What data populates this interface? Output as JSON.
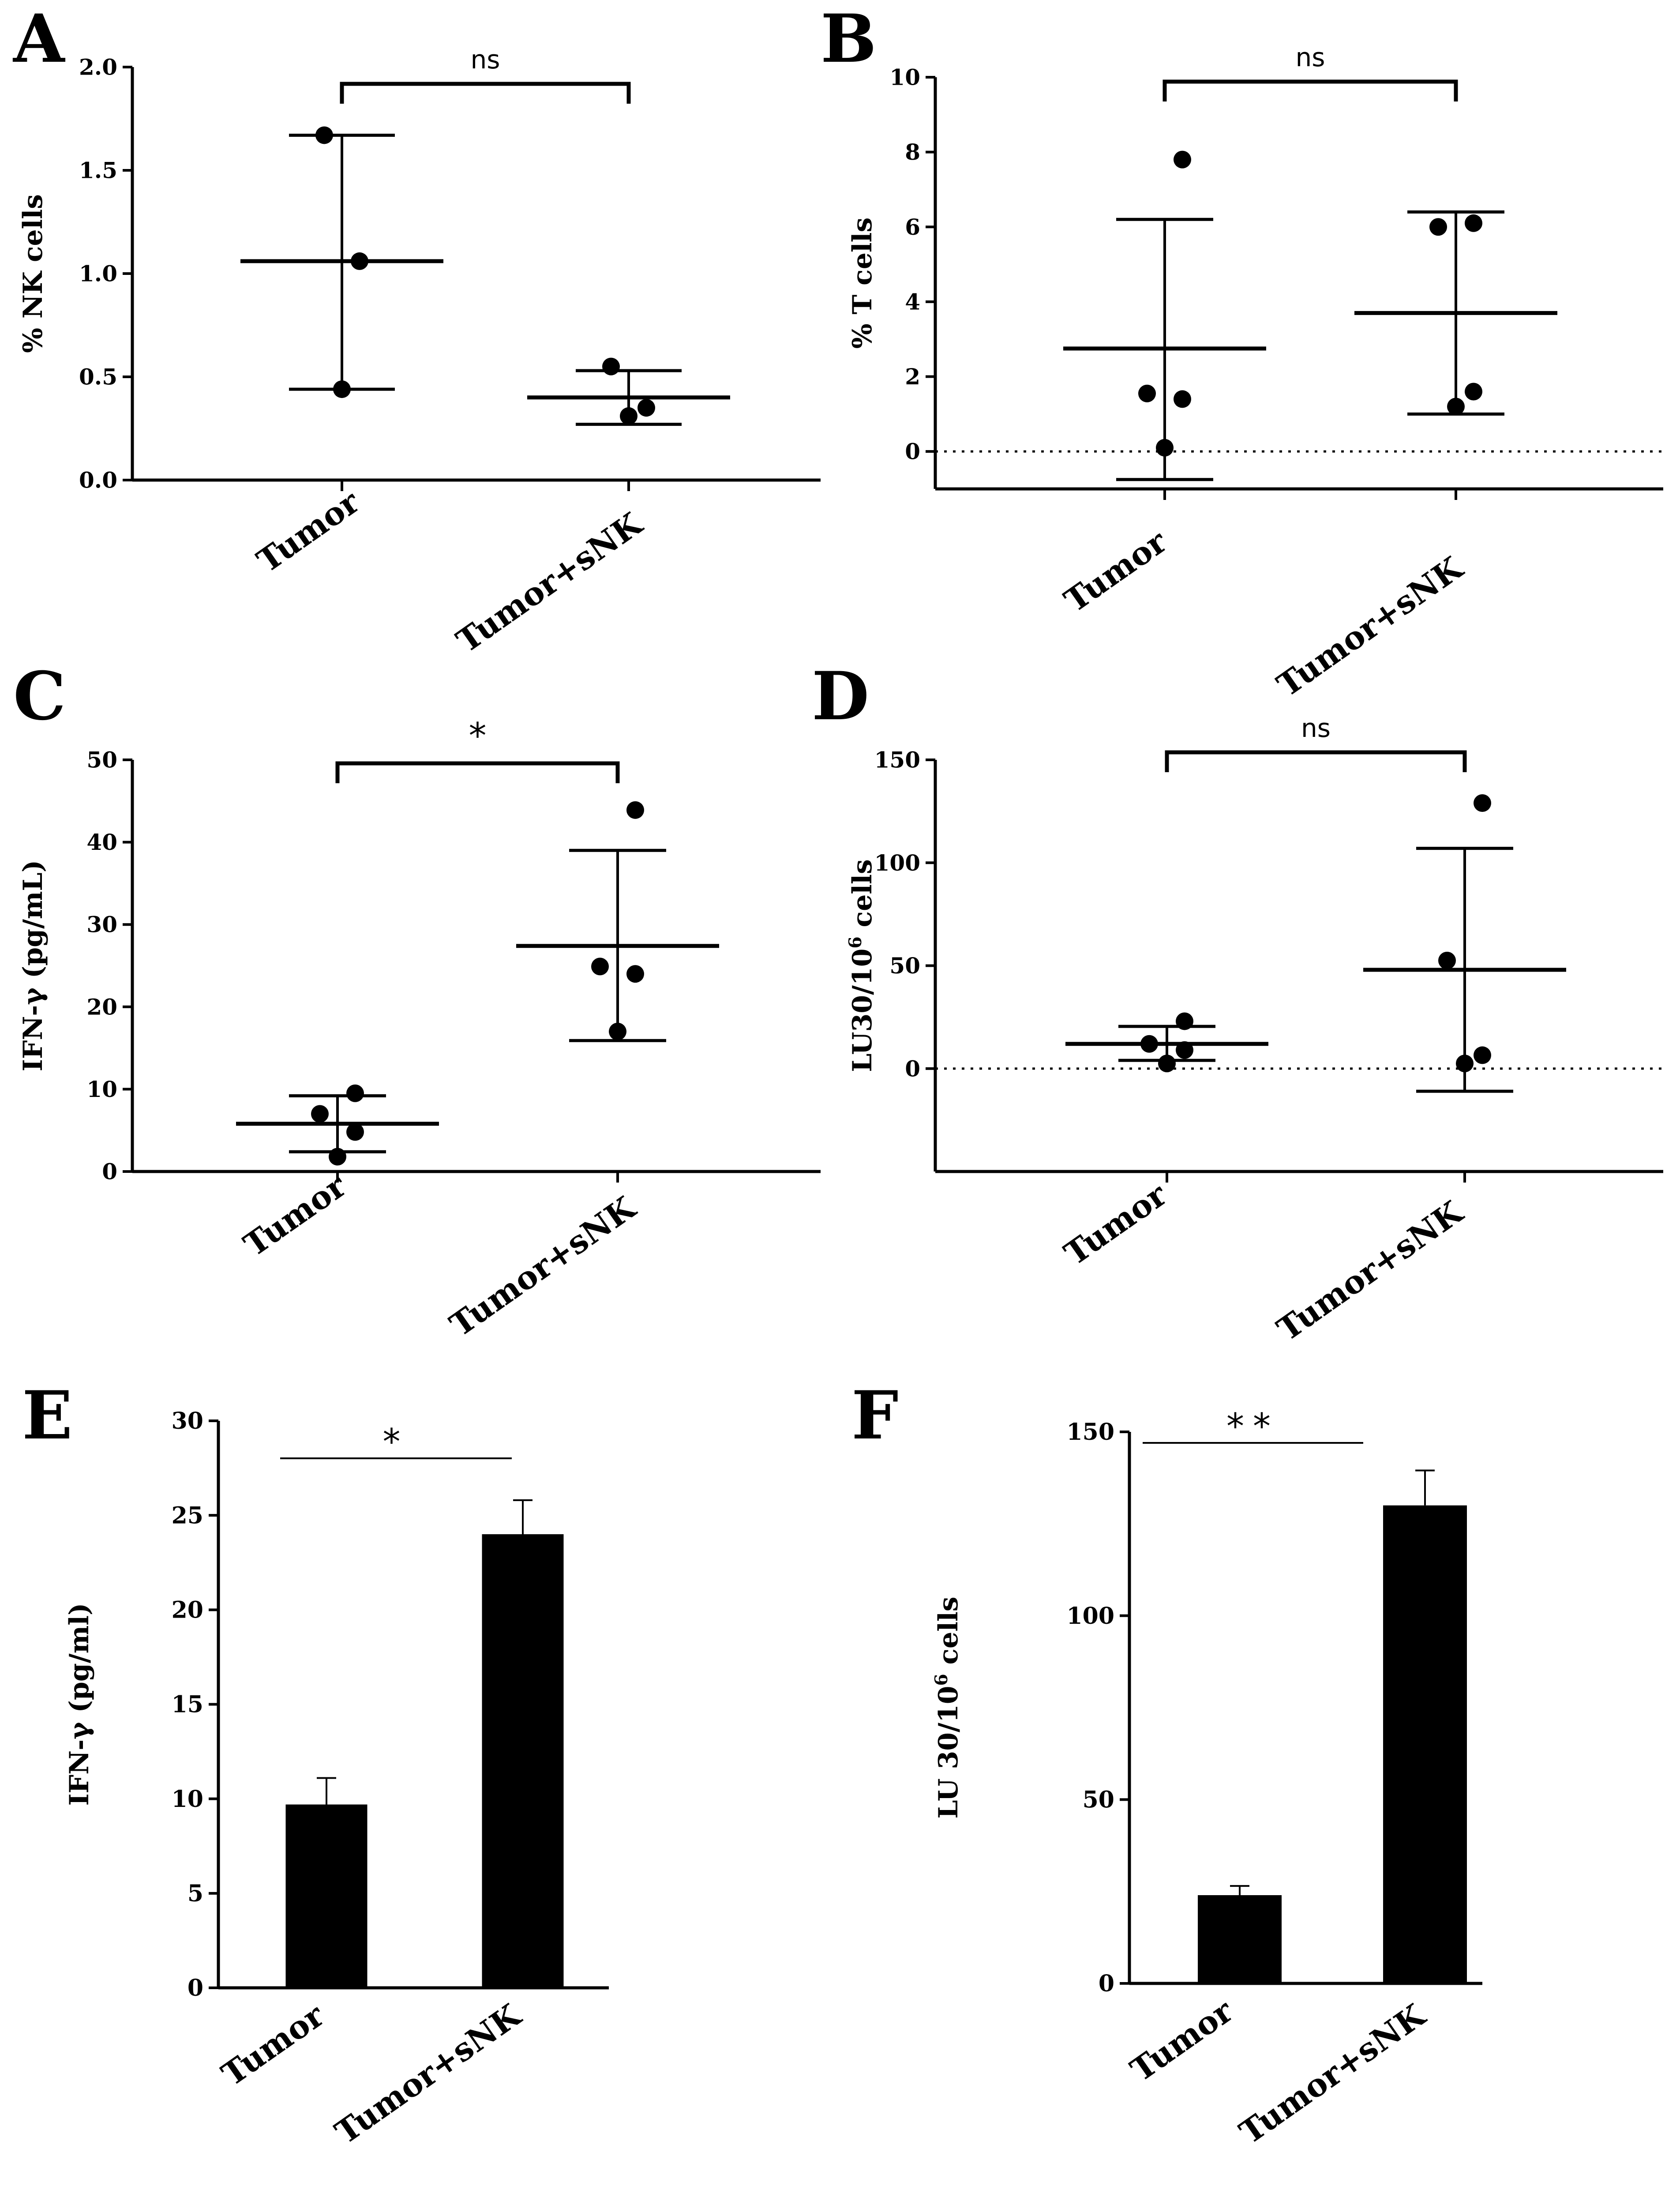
{
  "chart_data": [
    {
      "panel": "A",
      "type": "scatter",
      "ylabel": "% NK cells",
      "ylim": [
        0,
        2.0
      ],
      "yticks": [
        "0.0",
        "0.5",
        "1.0",
        "1.5",
        "2.0"
      ],
      "categories": [
        "Tumor",
        "Tumor+sNK"
      ],
      "series": [
        {
          "points": [
            0.44,
            1.06,
            1.67
          ],
          "mean": 1.06,
          "err_low": 0.44,
          "err_high": 1.67
        },
        {
          "points": [
            0.31,
            0.35,
            0.55
          ],
          "mean": 0.4,
          "err_low": 0.27,
          "err_high": 0.53
        }
      ],
      "significance": "ns",
      "zero_line": false
    },
    {
      "panel": "B",
      "type": "scatter",
      "ylabel": "% T cells",
      "ylim": [
        -1,
        10
      ],
      "yticks": [
        "0",
        "2",
        "4",
        "6",
        "8",
        "10"
      ],
      "categories": [
        "Tumor",
        "Tumor+sNK"
      ],
      "series": [
        {
          "points": [
            0.1,
            1.4,
            1.55,
            7.8
          ],
          "mean": 2.75,
          "err_low": -0.75,
          "err_high": 6.2
        },
        {
          "points": [
            1.2,
            1.6,
            6.0,
            6.1
          ],
          "mean": 3.7,
          "err_low": 1.0,
          "err_high": 6.4
        }
      ],
      "significance": "ns",
      "zero_line": true
    },
    {
      "panel": "C",
      "type": "scatter",
      "ylabel": "IFN-γ (pg/mL)",
      "ylim": [
        0,
        50
      ],
      "yticks": [
        "0",
        "10",
        "20",
        "30",
        "40",
        "50"
      ],
      "categories": [
        "Tumor",
        "Tumor+sNK"
      ],
      "series": [
        {
          "points": [
            1.8,
            4.8,
            7.0,
            9.5
          ],
          "mean": 5.8,
          "err_low": 2.4,
          "err_high": 9.2
        },
        {
          "points": [
            17.0,
            24.0,
            24.9,
            43.9
          ],
          "mean": 27.4,
          "err_low": 15.9,
          "err_high": 39.0
        }
      ],
      "significance": "*",
      "zero_line": false
    },
    {
      "panel": "D",
      "type": "scatter",
      "ylabel": "LU30/10",
      "ylabel_sup": "6",
      "ylabel_suffix": " cells",
      "ylim": [
        -50,
        150
      ],
      "yticks": [
        "0",
        "50",
        "100",
        "150"
      ],
      "categories": [
        "Tumor",
        "Tumor+sNK"
      ],
      "series": [
        {
          "points": [
            2.5,
            9.0,
            12.0,
            23.0
          ],
          "mean": 12.0,
          "err_low": 4.0,
          "err_high": 20.5
        },
        {
          "points": [
            2.5,
            6.5,
            52.5,
            129.0
          ],
          "mean": 48.0,
          "err_low": -11.0,
          "err_high": 107.0
        }
      ],
      "significance": "ns",
      "zero_line": true
    },
    {
      "panel": "E",
      "type": "bar",
      "ylabel": "IFN-γ (pg/ml)",
      "ylim": [
        0,
        30
      ],
      "yticks": [
        "0",
        "5",
        "10",
        "15",
        "20",
        "25",
        "30"
      ],
      "categories": [
        "Tumor",
        "Tumor+sNK"
      ],
      "values": [
        9.7,
        24.0
      ],
      "errors": [
        1.4,
        1.8
      ],
      "significance": "*"
    },
    {
      "panel": "F",
      "type": "bar",
      "ylabel": "LU 30/10",
      "ylabel_sup": "6",
      "ylabel_suffix": " cells",
      "ylim": [
        0,
        150
      ],
      "yticks": [
        "0",
        "50",
        "100",
        "150"
      ],
      "categories": [
        "Tumor",
        "Tumor+sNK"
      ],
      "values": [
        24.0,
        130.0
      ],
      "errors": [
        2.5,
        9.5
      ],
      "significance": "**"
    }
  ]
}
